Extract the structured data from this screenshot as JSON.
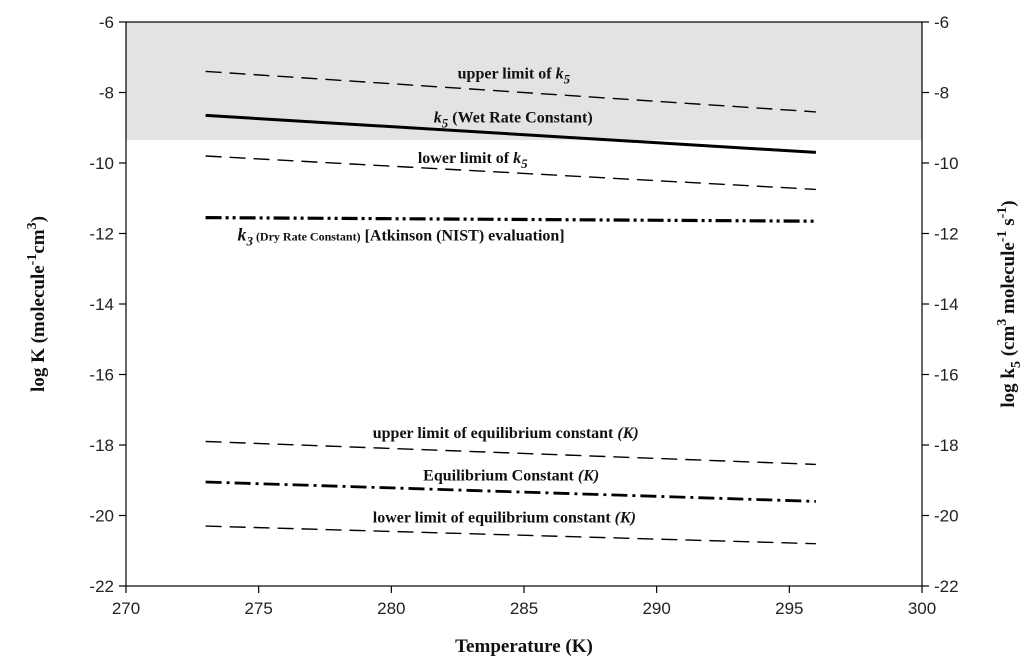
{
  "chart_data": {
    "type": "line",
    "xlabel": "Temperature (K)",
    "ylabel_left": {
      "main": "log K (molecule",
      "sup1": "-1",
      "mid": "cm",
      "sup2": "3",
      "end": ")"
    },
    "ylabel_right": {
      "main": "log k",
      "sub": "5",
      "mid1": " (cm",
      "sup1": "3",
      "mid2": " molecule",
      "sup2": "-1",
      "mid3": " s",
      "sup3": "-1",
      "end": ")"
    },
    "xlim": [
      270,
      300
    ],
    "ylim": [
      -22,
      -6
    ],
    "x_ticks": [
      "270",
      "275",
      "280",
      "285",
      "290",
      "295",
      "300"
    ],
    "y_ticks": [
      "-6",
      "-8",
      "-10",
      "-12",
      "-14",
      "-16",
      "-18",
      "-20",
      "-22"
    ],
    "shaded_region": {
      "y_from": -9.35,
      "y_to": -6,
      "color": "#e3e3e3"
    },
    "series": [
      {
        "key": "upper_k5",
        "style": "dashed",
        "x": [
          273,
          296
        ],
        "y": [
          -7.4,
          -8.55
        ]
      },
      {
        "key": "k5",
        "style": "solid",
        "x": [
          273,
          296
        ],
        "y": [
          -8.65,
          -9.7
        ]
      },
      {
        "key": "lower_k5",
        "style": "dashed",
        "x": [
          273,
          296
        ],
        "y": [
          -9.8,
          -10.75
        ]
      },
      {
        "key": "k3",
        "style": "dashdotdot",
        "x": [
          273,
          296
        ],
        "y": [
          -11.55,
          -11.65
        ]
      },
      {
        "key": "upper_K",
        "style": "dashed",
        "x": [
          273,
          296
        ],
        "y": [
          -17.9,
          -18.55
        ]
      },
      {
        "key": "K",
        "style": "dashdot",
        "x": [
          273,
          296
        ],
        "y": [
          -19.05,
          -19.6
        ]
      },
      {
        "key": "lower_K",
        "style": "dashed",
        "x": [
          273,
          296
        ],
        "y": [
          -20.3,
          -20.8
        ]
      }
    ],
    "annotations": {
      "upper_k5": {
        "text": "upper limit of ",
        "sym": "k",
        "sub": "5",
        "x": 282.5,
        "y": -7.6
      },
      "k5": {
        "sym": "k",
        "sub": "5",
        "text": " (Wet Rate Constant)",
        "x": 281.6,
        "y": -8.85
      },
      "lower_k5": {
        "text": "lower limit of ",
        "sym": "k",
        "sub": "5",
        "x": 281.0,
        "y": -10.0
      },
      "k3": {
        "sym": "k",
        "sub": "3",
        "small": "  (Dry Rate Constant)",
        "text": " [Atkinson (NIST) evaluation]",
        "x": 274.2,
        "y": -12.2
      },
      "upper_K": {
        "text": "upper limit of equilibrium constant ",
        "ital": "(K)",
        "x": 279.3,
        "y": -17.8
      },
      "K": {
        "text": "Equilibrium Constant ",
        "ital": "(K)",
        "x": 281.2,
        "y": -19.0
      },
      "lower_K": {
        "text": "lower limit of equilibrium constant ",
        "ital": "(K)",
        "x": 279.3,
        "y": -20.2
      }
    }
  }
}
